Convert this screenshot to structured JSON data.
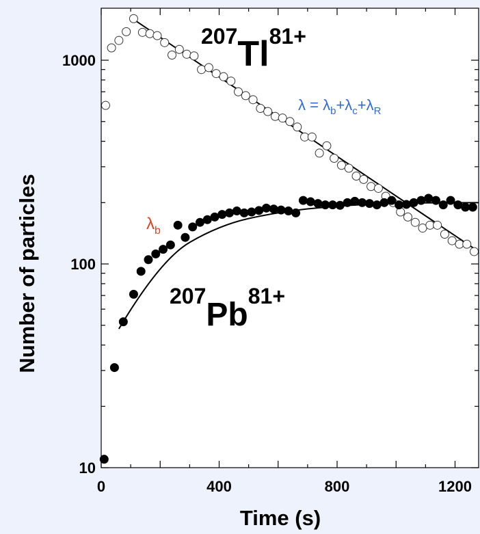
{
  "chart_data": {
    "type": "scatter",
    "xlabel": "Time (s)",
    "ylabel": "Number of particles",
    "xlim": [
      0,
      1280
    ],
    "ylim": [
      10,
      1800
    ],
    "yscale": "log",
    "xticks": [
      0,
      400,
      800,
      1200
    ],
    "yticks": [
      10,
      100,
      1000
    ],
    "grid": false,
    "series": [
      {
        "name": "207Tl81+",
        "marker": "open-circle",
        "points": [
          [
            15,
            600
          ],
          [
            35,
            1150
          ],
          [
            60,
            1250
          ],
          [
            85,
            1380
          ],
          [
            110,
            1600
          ],
          [
            140,
            1370
          ],
          [
            165,
            1350
          ],
          [
            190,
            1320
          ],
          [
            215,
            1220
          ],
          [
            240,
            1060
          ],
          [
            265,
            1130
          ],
          [
            290,
            1070
          ],
          [
            315,
            1050
          ],
          [
            340,
            900
          ],
          [
            365,
            920
          ],
          [
            390,
            860
          ],
          [
            415,
            830
          ],
          [
            440,
            790
          ],
          [
            465,
            700
          ],
          [
            490,
            670
          ],
          [
            515,
            640
          ],
          [
            540,
            580
          ],
          [
            565,
            560
          ],
          [
            590,
            530
          ],
          [
            615,
            520
          ],
          [
            640,
            500
          ],
          [
            665,
            470
          ],
          [
            690,
            420
          ],
          [
            715,
            420
          ],
          [
            740,
            350
          ],
          [
            765,
            380
          ],
          [
            790,
            330
          ],
          [
            815,
            305
          ],
          [
            840,
            295
          ],
          [
            865,
            270
          ],
          [
            890,
            260
          ],
          [
            915,
            240
          ],
          [
            940,
            235
          ],
          [
            965,
            215
          ],
          [
            990,
            200
          ],
          [
            1015,
            180
          ],
          [
            1040,
            170
          ],
          [
            1065,
            160
          ],
          [
            1090,
            150
          ],
          [
            1115,
            155
          ],
          [
            1140,
            155
          ],
          [
            1165,
            140
          ],
          [
            1190,
            130
          ],
          [
            1215,
            125
          ],
          [
            1240,
            125
          ],
          [
            1265,
            115
          ]
        ]
      },
      {
        "name": "207Pb81+",
        "marker": "filled-circle",
        "points": [
          [
            10,
            11
          ],
          [
            45,
            31
          ],
          [
            75,
            52
          ],
          [
            110,
            71
          ],
          [
            135,
            92
          ],
          [
            160,
            105
          ],
          [
            185,
            112
          ],
          [
            210,
            118
          ],
          [
            235,
            124
          ],
          [
            260,
            155
          ],
          [
            285,
            135
          ],
          [
            310,
            152
          ],
          [
            335,
            160
          ],
          [
            360,
            165
          ],
          [
            385,
            170
          ],
          [
            410,
            175
          ],
          [
            435,
            178
          ],
          [
            460,
            182
          ],
          [
            485,
            178
          ],
          [
            510,
            180
          ],
          [
            535,
            183
          ],
          [
            560,
            188
          ],
          [
            585,
            186
          ],
          [
            610,
            184
          ],
          [
            635,
            182
          ],
          [
            660,
            178
          ],
          [
            685,
            205
          ],
          [
            710,
            202
          ],
          [
            735,
            198
          ],
          [
            760,
            195
          ],
          [
            785,
            195
          ],
          [
            810,
            194
          ],
          [
            835,
            200
          ],
          [
            860,
            203
          ],
          [
            885,
            200
          ],
          [
            910,
            198
          ],
          [
            935,
            195
          ],
          [
            960,
            200
          ],
          [
            985,
            205
          ],
          [
            1010,
            195
          ],
          [
            1035,
            196
          ],
          [
            1060,
            200
          ],
          [
            1085,
            205
          ],
          [
            1110,
            210
          ],
          [
            1135,
            205
          ],
          [
            1160,
            195
          ],
          [
            1185,
            205
          ],
          [
            1210,
            195
          ],
          [
            1235,
            190
          ],
          [
            1260,
            190
          ]
        ]
      }
    ],
    "fits": [
      {
        "name": "Tl decay fit",
        "from_x": 120,
        "to_x": 1280,
        "y0": 1550,
        "y1": 115
      },
      {
        "name": "Pb growth fit",
        "x": [
          60,
          200,
          400,
          600,
          800,
          1000,
          1280
        ],
        "y": [
          48,
          105,
          155,
          180,
          193,
          199,
          200
        ]
      }
    ],
    "annotations": {
      "tl": {
        "mass": "207",
        "symbol": "Tl",
        "charge": "81+"
      },
      "pb": {
        "mass": "207",
        "symbol": "Pb",
        "charge": "81+"
      },
      "formula": {
        "lhs": "λ = ",
        "p1": "λ",
        "s1": "b",
        "plus1": "+",
        "p2": "λ",
        "s2": "c",
        "plus2": "+",
        "p3": "λ",
        "s3": "R"
      },
      "lambda_b": {
        "sym": "λ",
        "sub": "b"
      }
    },
    "colors": {
      "formula": "#2f6bd6",
      "lambda_b": "#e8401c",
      "background": "#edf2fc"
    }
  }
}
